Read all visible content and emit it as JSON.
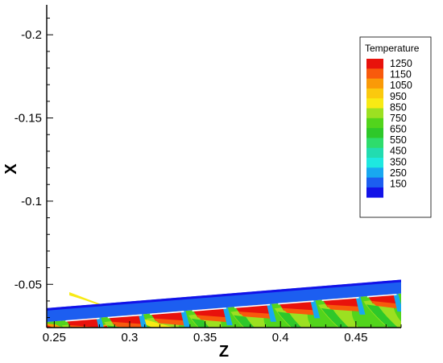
{
  "chart_data": {
    "type": "heatmap",
    "xlabel": "Z",
    "ylabel": "X",
    "xlim": [
      0.245,
      0.48
    ],
    "ylim": [
      -0.024,
      -0.218
    ],
    "x_ticks": [
      "0.25",
      "0.3",
      "0.35",
      "0.4",
      "0.45"
    ],
    "x_tick_values": [
      0.25,
      0.3,
      0.35,
      0.4,
      0.45
    ],
    "y_ticks": [
      "-0.05",
      "-0.1",
      "-0.15",
      "-0.2"
    ],
    "y_tick_values": [
      -0.05,
      -0.1,
      -0.15,
      -0.2
    ],
    "legend": {
      "title": "Temperature",
      "placement": "right",
      "levels": [
        {
          "value": "1250",
          "color": "#e8120c"
        },
        {
          "value": "1150",
          "color": "#fa9a08"
        },
        {
          "value": "1050",
          "color": "#f8ea14"
        },
        {
          "value": "950",
          "color": "#9ce021"
        },
        {
          "value": "850",
          "color": "#52d41c"
        },
        {
          "value": "750",
          "color": "#2ec82a"
        },
        {
          "value": "650",
          "color": "#2edc6c"
        },
        {
          "value": "550",
          "color": "#22dcb0"
        },
        {
          "value": "450",
          "color": "#1ee8e0"
        },
        {
          "value": "350",
          "color": "#18a8f0"
        },
        {
          "value": "250",
          "color": "#1c5ef0"
        },
        {
          "value": "150",
          "color": "#1212e8"
        }
      ],
      "extra_swatches": [
        "#f85a0c",
        "#fbc90e"
      ]
    },
    "domain": {
      "cooling_film_top": [
        [
          0.245,
          -0.0357
        ],
        [
          0.48,
          -0.0528
        ]
      ],
      "film_thickness": 0.0083,
      "slot_lips_z": [
        0.255,
        0.283,
        0.311,
        0.339,
        0.367,
        0.396,
        0.425,
        0.455
      ]
    }
  }
}
